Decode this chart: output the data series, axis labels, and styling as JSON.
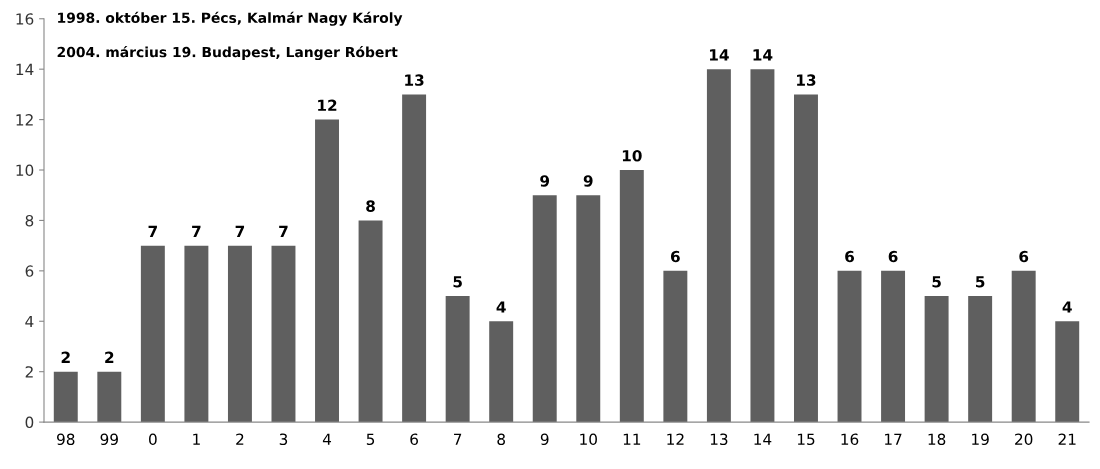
{
  "chart_data": {
    "type": "bar",
    "categories": [
      "98",
      "99",
      "0",
      "1",
      "2",
      "3",
      "4",
      "5",
      "6",
      "7",
      "8",
      "9",
      "10",
      "11",
      "12",
      "13",
      "14",
      "15",
      "16",
      "17",
      "18",
      "19",
      "20",
      "21"
    ],
    "values": [
      2,
      2,
      7,
      7,
      7,
      7,
      12,
      8,
      13,
      5,
      4,
      9,
      9,
      10,
      6,
      14,
      14,
      13,
      6,
      6,
      5,
      5,
      6,
      4
    ],
    "color": "#5f5f5f",
    "ylim": [
      0,
      16
    ],
    "yticks": [
      0,
      2,
      4,
      6,
      8,
      10,
      12,
      14,
      16
    ],
    "grid": false,
    "data_labels": true,
    "annotations": [
      "1998. október 15. Pécs, Kalmár Nagy Károly",
      "2004. március 19. Budapest, Langer Róbert"
    ]
  }
}
